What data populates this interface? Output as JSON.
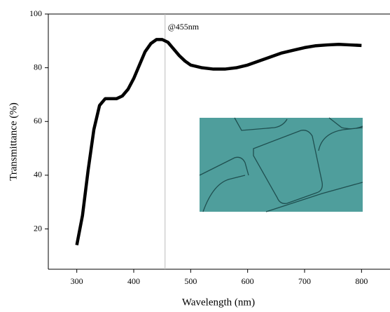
{
  "chart_data": {
    "type": "line",
    "x_label": "Wavelength (nm)",
    "y_label": "Transmittance (%)",
    "annotation": "@455nm",
    "vline": 455,
    "x": [
      300,
      310,
      320,
      330,
      340,
      350,
      360,
      370,
      380,
      390,
      400,
      410,
      420,
      430,
      440,
      450,
      460,
      470,
      480,
      490,
      500,
      520,
      540,
      560,
      580,
      600,
      620,
      640,
      660,
      680,
      700,
      720,
      740,
      760,
      780,
      800
    ],
    "series": [
      {
        "color": "#000000",
        "values": [
          14,
          25,
          42,
          57,
          66,
          68.5,
          68.5,
          68.5,
          69.5,
          72,
          76,
          81,
          86,
          89,
          90.5,
          90.5,
          89.5,
          87,
          84.5,
          82.5,
          81,
          80,
          79.5,
          79.5,
          80,
          81,
          82.5,
          84,
          85.5,
          86.5,
          87.5,
          88.2,
          88.5,
          88.7,
          88.5,
          88.3
        ]
      }
    ],
    "xlim": [
      250,
      850
    ],
    "xticks": [
      300,
      400,
      500,
      600,
      700,
      800
    ],
    "ylim": [
      5,
      100
    ],
    "yticks": [
      20,
      40,
      60,
      80,
      100
    ]
  }
}
